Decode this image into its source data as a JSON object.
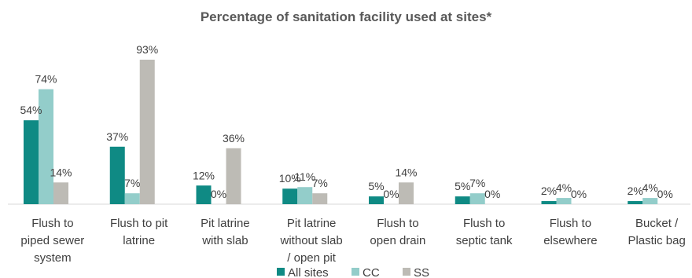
{
  "chart_data": {
    "type": "bar",
    "title": "Percentage of sanitation facility used at sites*",
    "categories": [
      [
        "Flush to",
        "piped sewer",
        "system"
      ],
      [
        "Flush to pit",
        "latrine"
      ],
      [
        "Pit latrine",
        "with slab"
      ],
      [
        "Pit latrine",
        "without slab",
        "/ open pit"
      ],
      [
        "Flush to",
        "open drain"
      ],
      [
        "Flush to",
        "septic tank"
      ],
      [
        "Flush to",
        "elsewhere"
      ],
      [
        "Bucket /",
        "Plastic bag"
      ]
    ],
    "series": [
      {
        "name": "All sites",
        "color": "#0f8a84",
        "values": [
          54,
          37,
          12,
          10,
          5,
          5,
          2,
          2
        ],
        "labels": [
          "54%",
          "37%",
          "12%",
          "10%",
          "5%",
          "5%",
          "2%",
          "2%"
        ]
      },
      {
        "name": "CC",
        "color": "#93cdca",
        "values": [
          74,
          7,
          0,
          11,
          0,
          7,
          4,
          4
        ],
        "labels": [
          "74%",
          "7%",
          "0%",
          "11%",
          "0%",
          "7%",
          "4%",
          "4%"
        ]
      },
      {
        "name": "SS",
        "color": "#bdbbb5",
        "values": [
          14,
          93,
          36,
          7,
          14,
          0,
          0,
          0
        ],
        "labels": [
          "14%",
          "93%",
          "36%",
          "7%",
          "14%",
          "0%",
          "0%",
          "0%"
        ]
      }
    ],
    "ylim": [
      0,
      100
    ],
    "grid": false,
    "legend": "bottom"
  }
}
